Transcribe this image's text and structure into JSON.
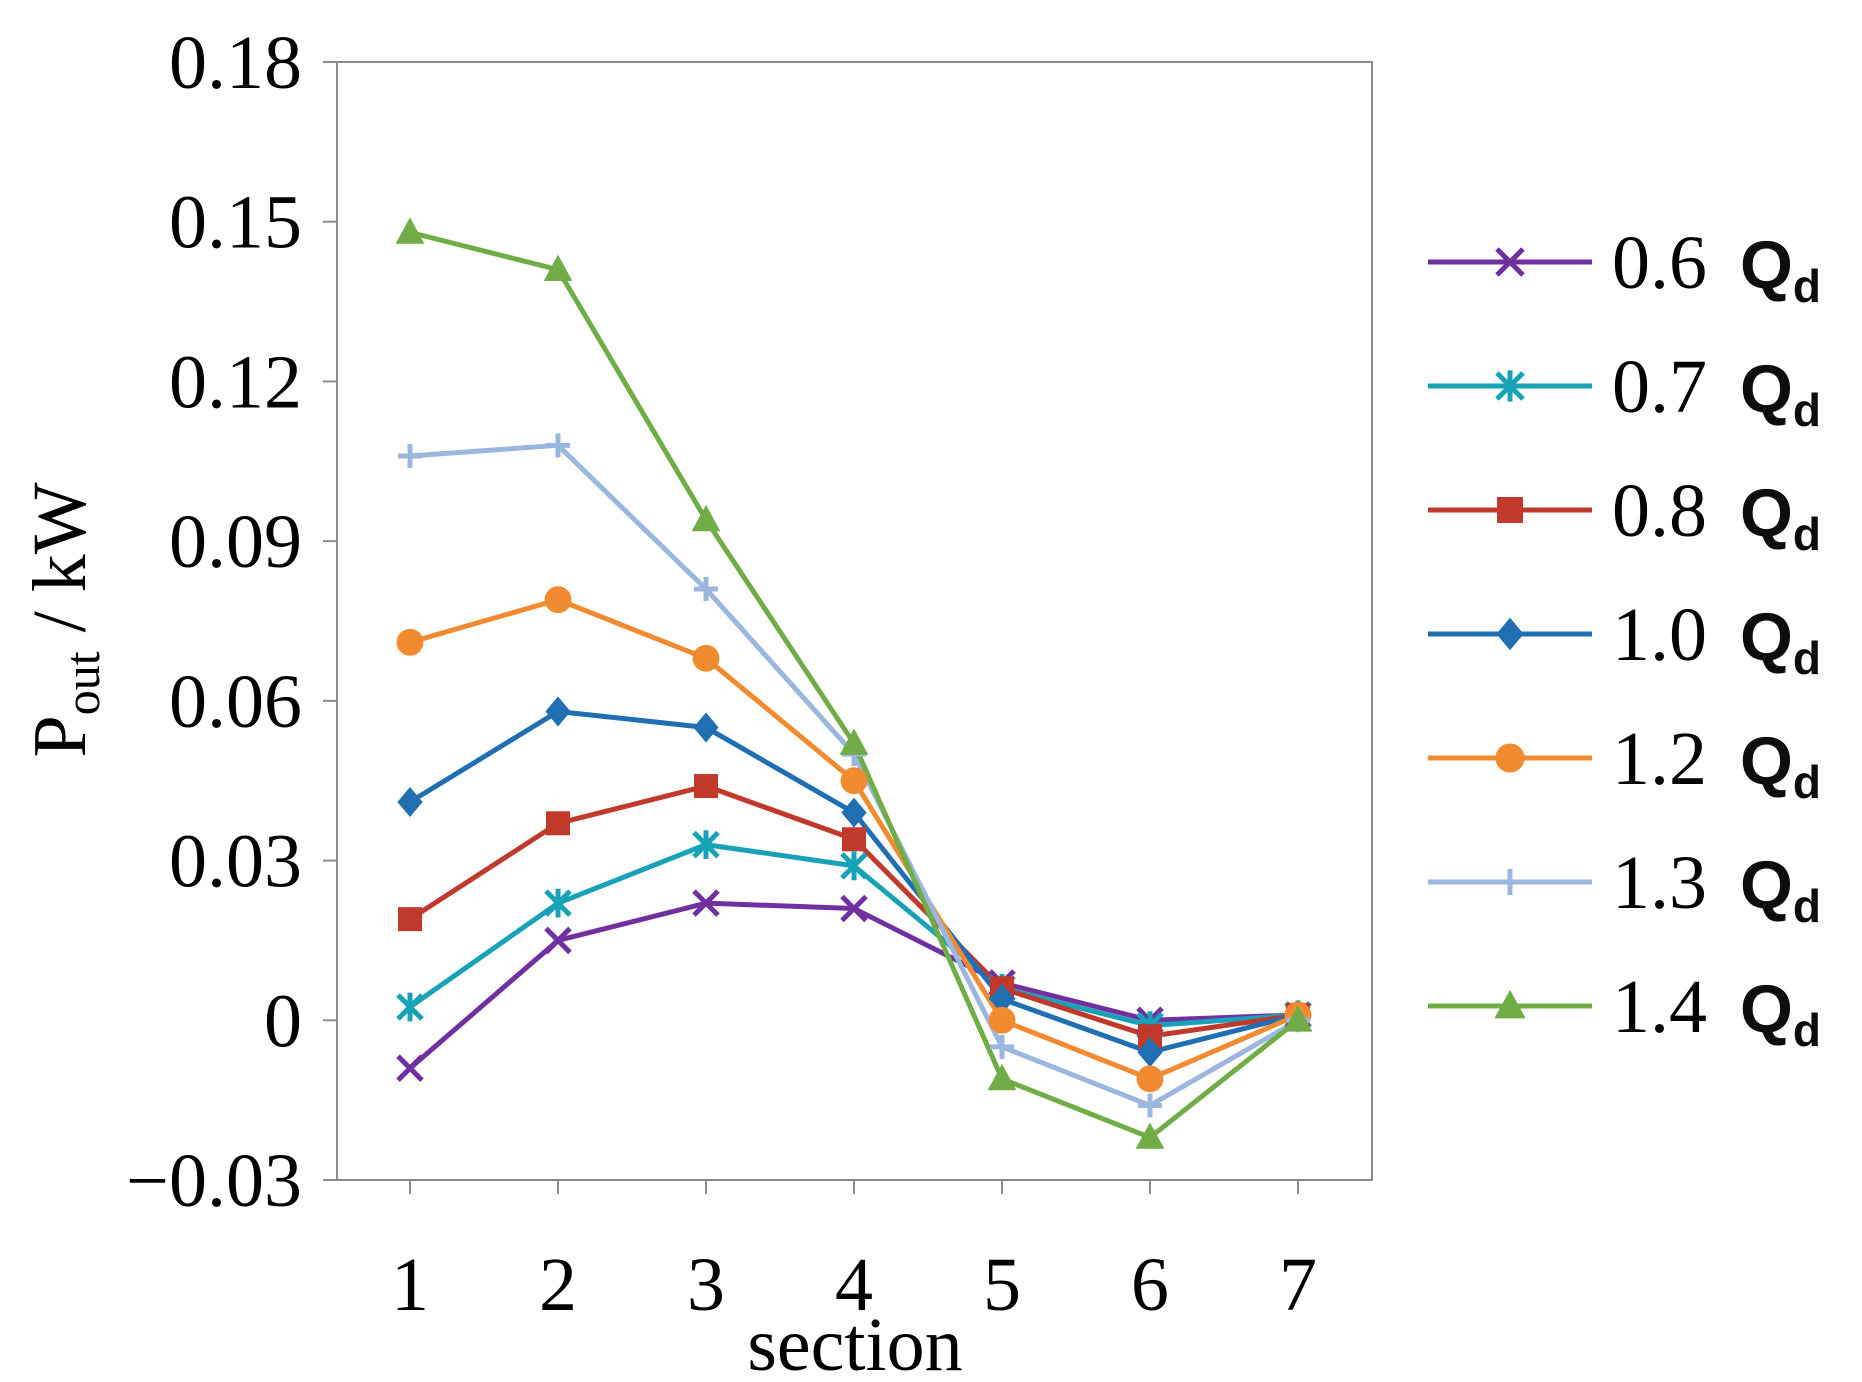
{
  "chart_data": {
    "type": "line",
    "title": "",
    "xlabel": "section",
    "ylabel": {
      "main": "P",
      "sub": "out",
      "rest": " / kW"
    },
    "categories": [
      "1",
      "2",
      "3",
      "4",
      "5",
      "6",
      "7"
    ],
    "ylim": [
      -0.03,
      0.18
    ],
    "yticks": [
      "0.18",
      "0.15",
      "0.12",
      "0.09",
      "0.06",
      "0.03",
      "0",
      "−0.03"
    ],
    "ytick_values": [
      0.18,
      0.15,
      0.12,
      0.09,
      0.06,
      0.03,
      0,
      -0.03
    ],
    "grid": false,
    "legend_position": "right",
    "legend_symbol": {
      "main": "Q",
      "sub": "d"
    },
    "series": [
      {
        "name": "0.6",
        "color": "#7030a0",
        "marker": "x",
        "values": [
          -0.009,
          0.015,
          0.022,
          0.021,
          0.007,
          0.0,
          0.001
        ]
      },
      {
        "name": "0.7",
        "color": "#17a2b8",
        "marker": "star",
        "values": [
          0.0025,
          0.022,
          0.033,
          0.029,
          0.006,
          -0.001,
          0.001
        ]
      },
      {
        "name": "0.8",
        "color": "#c0392b",
        "marker": "square",
        "values": [
          0.019,
          0.037,
          0.044,
          0.034,
          0.006,
          -0.003,
          0.001
        ]
      },
      {
        "name": "1.0",
        "color": "#1f6fb2",
        "marker": "diamond",
        "values": [
          0.041,
          0.058,
          0.055,
          0.039,
          0.004,
          -0.006,
          0.001
        ]
      },
      {
        "name": "1.2",
        "color": "#f28a30",
        "marker": "circle",
        "values": [
          0.071,
          0.079,
          0.068,
          0.045,
          0.0,
          -0.011,
          0.001
        ]
      },
      {
        "name": "1.3",
        "color": "#9bb7e0",
        "marker": "plus",
        "values": [
          0.106,
          0.108,
          0.081,
          0.05,
          -0.005,
          -0.016,
          0.0
        ]
      },
      {
        "name": "1.4",
        "color": "#70ad47",
        "marker": "triangle",
        "values": [
          0.148,
          0.141,
          0.094,
          0.052,
          -0.011,
          -0.022,
          0.0
        ]
      }
    ]
  }
}
